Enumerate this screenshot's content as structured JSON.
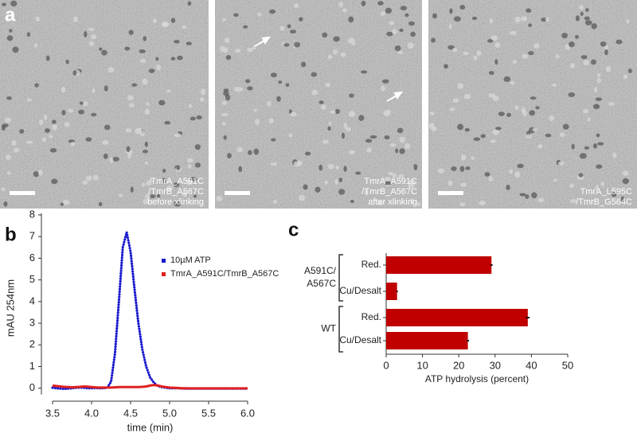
{
  "panel_labels": [
    "a",
    "b",
    "c"
  ],
  "micrographs": [
    {
      "caption": [
        "TmrA_A591C",
        "/TmrB_A567C",
        "before xlinking"
      ]
    },
    {
      "caption": [
        "TmrA_A591C",
        "/TmrB_A567C",
        "after xlinking"
      ]
    },
    {
      "caption": [
        "TmrA_L595C",
        "/TmrB_G564C"
      ]
    }
  ],
  "chart_data": [
    {
      "type": "line",
      "y_label": "mAU 254nm",
      "x_label": "time (min)",
      "x": [
        3.5,
        3.55,
        3.6,
        3.65,
        3.7,
        3.75,
        3.8,
        3.85,
        3.9,
        3.95,
        4.0,
        4.05,
        4.1,
        4.15,
        4.2,
        4.25,
        4.3,
        4.35,
        4.4,
        4.45,
        4.5,
        4.55,
        4.6,
        4.65,
        4.7,
        4.75,
        4.8,
        4.85,
        4.9,
        4.95,
        5.0,
        5.05,
        5.1,
        5.15,
        5.2,
        5.25,
        5.3,
        5.35,
        5.4,
        5.45,
        5.5,
        5.55,
        5.6,
        5.65,
        5.7,
        5.75,
        5.8,
        5.85,
        5.9,
        5.95,
        6.0
      ],
      "series": [
        {
          "name": "10µM  ATP",
          "color": "#1a1acc",
          "style": "dotted",
          "values": [
            0.02,
            0.0,
            -0.02,
            -0.03,
            -0.02,
            0.0,
            0.02,
            0.03,
            0.02,
            0.0,
            0.0,
            0.01,
            0.0,
            0.0,
            0.02,
            0.3,
            1.6,
            4.0,
            6.5,
            7.2,
            6.3,
            4.6,
            3.0,
            1.8,
            1.0,
            0.5,
            0.25,
            0.1,
            0.05,
            0.02,
            0.0,
            0.0,
            0.0,
            -0.01,
            -0.02,
            -0.02,
            -0.02,
            -0.02,
            -0.02,
            -0.02,
            -0.02,
            -0.02,
            -0.02,
            -0.02,
            -0.02,
            -0.02,
            -0.02,
            -0.02,
            -0.02,
            -0.02,
            -0.02
          ]
        },
        {
          "name": "TmrA_A591C/TmrB_A567C",
          "color": "#e02020",
          "style": "solid",
          "values": [
            0.12,
            0.1,
            0.08,
            0.06,
            0.05,
            0.04,
            0.05,
            0.06,
            0.08,
            0.07,
            0.05,
            0.04,
            0.03,
            0.03,
            0.03,
            0.03,
            0.04,
            0.05,
            0.05,
            0.05,
            0.05,
            0.05,
            0.05,
            0.06,
            0.08,
            0.12,
            0.15,
            0.12,
            0.08,
            0.05,
            0.03,
            0.02,
            0.01,
            0.0,
            0.0,
            -0.01,
            -0.01,
            -0.01,
            -0.01,
            -0.01,
            -0.01,
            -0.01,
            -0.01,
            -0.01,
            -0.01,
            -0.01,
            -0.01,
            -0.01,
            -0.01,
            -0.01,
            -0.01
          ]
        }
      ],
      "xlim": [
        3.5,
        6.0
      ],
      "xticks": [
        3.5,
        {
          "value": 4,
          "label": "4.0"
        },
        4.5,
        {
          "value": 5,
          "label": "5.0"
        },
        5.5,
        {
          "value": 6,
          "label": "6.0"
        }
      ],
      "ylim": [
        -0.6,
        8
      ],
      "yticks": [
        0,
        1,
        2,
        3,
        4,
        5,
        6,
        7,
        8
      ],
      "legend": "upper right"
    },
    {
      "type": "hbar",
      "x_label": "ATP hydrolysis (percent)",
      "groups": [
        {
          "label": [
            "A591C/",
            "A567C"
          ]
        },
        {
          "label": [
            "WT"
          ]
        }
      ],
      "categories": [
        "Red.",
        "Cu/Desalt",
        "Red.",
        "Cu/Desalt"
      ],
      "values": [
        29,
        3,
        39,
        22.5
      ],
      "errors": [
        0.3,
        0.2,
        0.5,
        0.3
      ],
      "color": "#c00000",
      "xlim": [
        0,
        50
      ],
      "xticks": [
        0,
        10,
        20,
        30,
        40,
        50
      ]
    }
  ]
}
